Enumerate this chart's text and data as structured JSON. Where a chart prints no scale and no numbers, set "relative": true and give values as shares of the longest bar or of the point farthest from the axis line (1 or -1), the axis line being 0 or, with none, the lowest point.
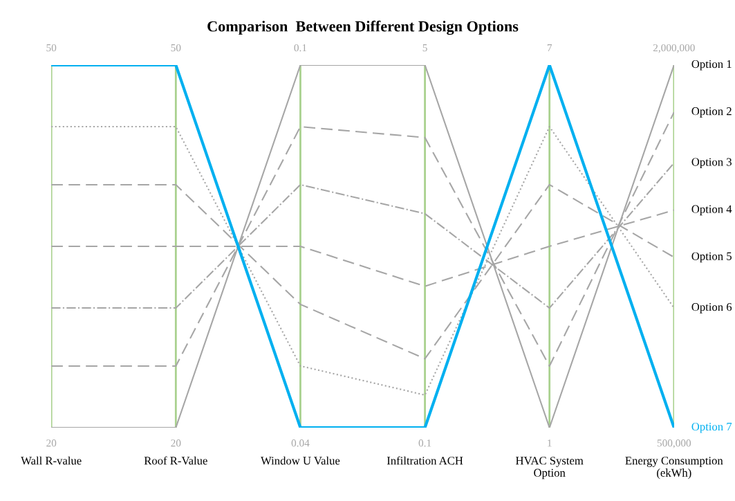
{
  "chart_data": {
    "type": "line",
    "title": "Comparison  Between Different Design Options",
    "relative": true,
    "grid": "x",
    "categories": [
      "Wall R-value",
      "Roof R-Value",
      "Window U Value",
      "Infiltration ACH",
      "HVAC System\nOption",
      "Energy Consumption\n(ekWh)"
    ],
    "series": [
      {
        "name": "Option 1",
        "color": "#a6a6a6",
        "line_style": "solid",
        "values": [
          0,
          0,
          1,
          1,
          0,
          1
        ]
      },
      {
        "name": "Option 2",
        "color": "#a6a6a6",
        "line_style": "dashed",
        "values": [
          0.17,
          0.17,
          0.83,
          0.8,
          0.17,
          0.87
        ]
      },
      {
        "name": "Option 3",
        "color": "#a6a6a6",
        "line_style": "dashdot",
        "values": [
          0.33,
          0.33,
          0.67,
          0.59,
          0.33,
          0.73
        ]
      },
      {
        "name": "Option 4",
        "color": "#a6a6a6",
        "line_style": "dashed",
        "values": [
          0.5,
          0.5,
          0.5,
          0.39,
          0.5,
          0.6
        ]
      },
      {
        "name": "Option 5",
        "color": "#a6a6a6",
        "line_style": "dashed",
        "values": [
          0.67,
          0.67,
          0.34,
          0.19,
          0.67,
          0.47
        ]
      },
      {
        "name": "Option 6",
        "color": "#a6a6a6",
        "line_style": "dotted",
        "values": [
          0.83,
          0.83,
          0.17,
          0.09,
          0.83,
          0.33
        ]
      },
      {
        "name": "Option 7",
        "color": "#00b0f0",
        "line_style": "solid",
        "values": [
          1,
          1,
          0,
          0,
          1,
          0
        ]
      }
    ],
    "annotations": [
      {
        "text": "50",
        "x": "Wall R-value",
        "y": 1
      },
      {
        "text": "20",
        "x": "Wall R-value",
        "y": 0
      },
      {
        "text": "50",
        "x": "Roof R-Value",
        "y": 1
      },
      {
        "text": "20",
        "x": "Roof R-Value",
        "y": 0
      },
      {
        "text": "0.1",
        "x": "Window U Value",
        "y": 1
      },
      {
        "text": "0.04",
        "x": "Window U Value",
        "y": 0
      },
      {
        "text": "5",
        "x": "Infiltration ACH",
        "y": 1
      },
      {
        "text": "0.1",
        "x": "Infiltration ACH",
        "y": 0
      },
      {
        "text": "7",
        "x": "HVAC System\nOption",
        "y": 1
      },
      {
        "text": "1",
        "x": "HVAC System\nOption",
        "y": 0
      },
      {
        "text": "2,000,000",
        "x": "Energy Consumption\n(ekWh)",
        "y": 1
      },
      {
        "text": "500,000",
        "x": "Energy Consumption\n(ekWh)",
        "y": 0
      }
    ]
  }
}
